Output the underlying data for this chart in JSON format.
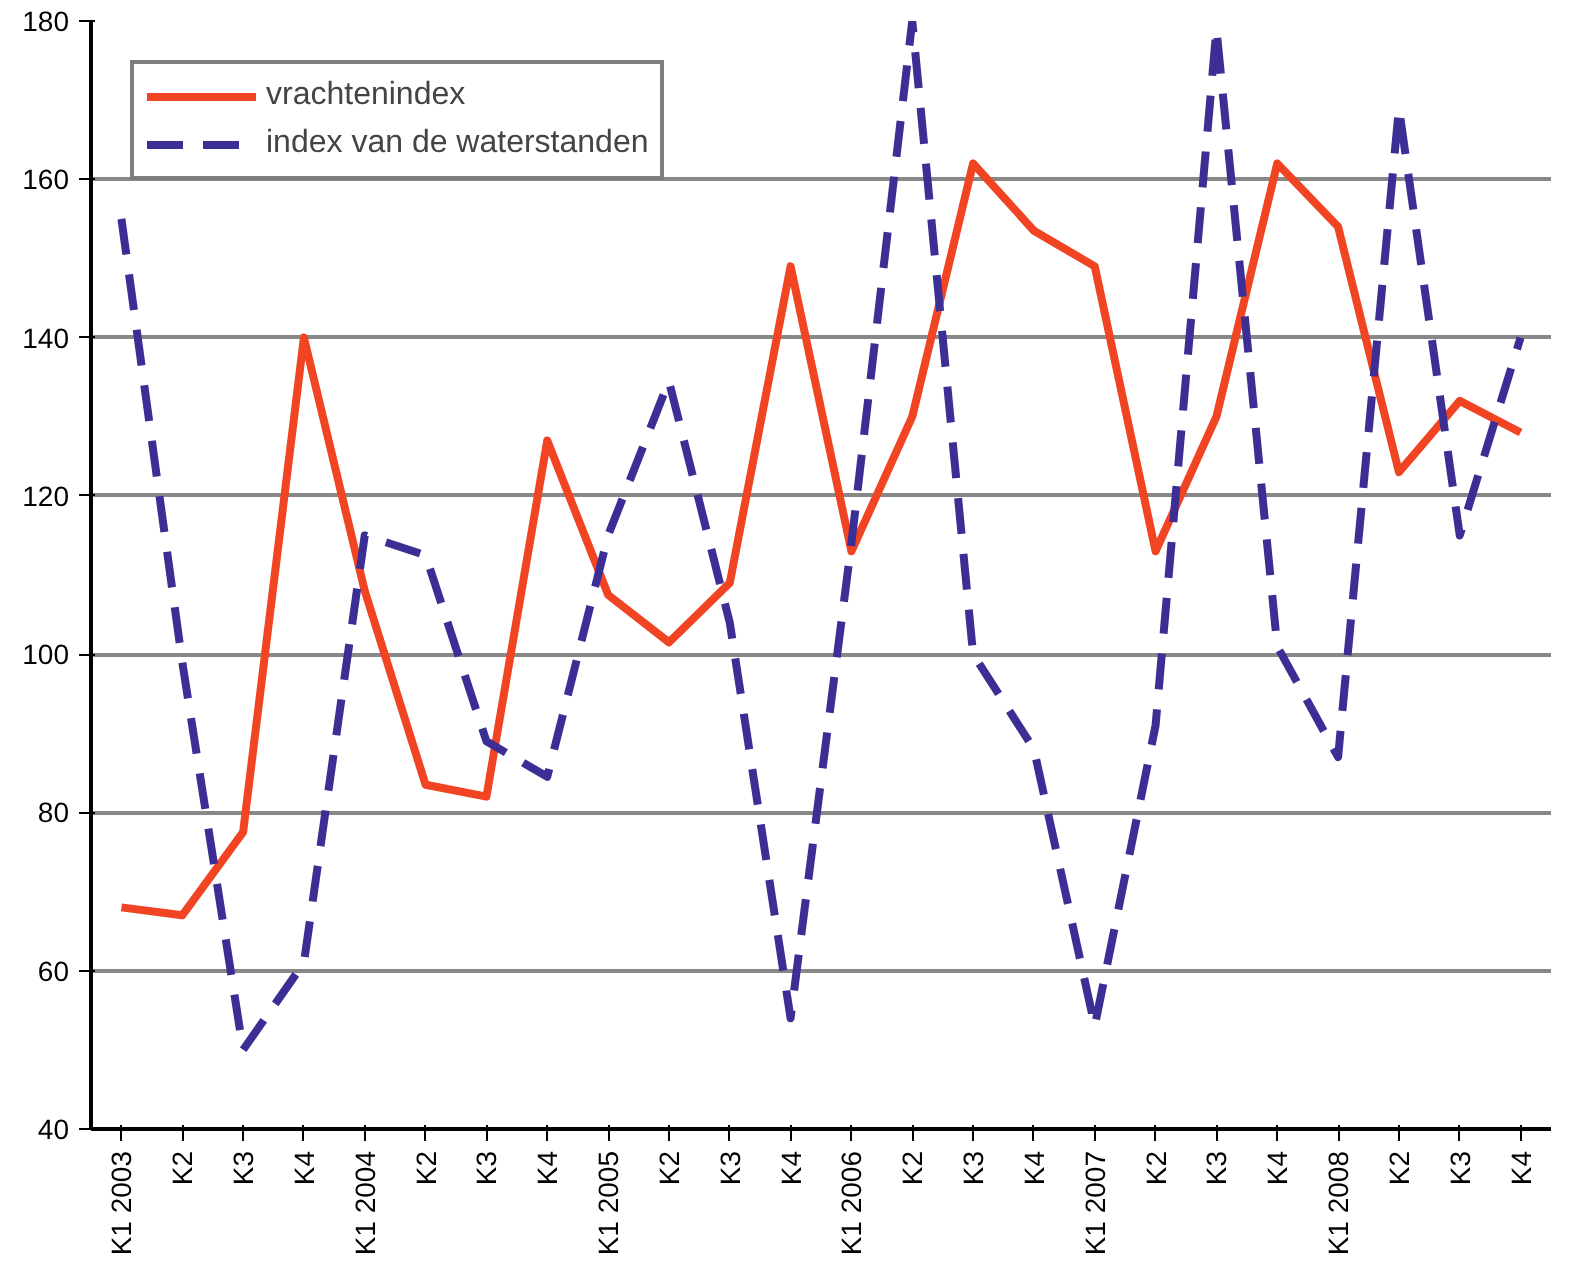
{
  "chart_data": {
    "type": "line",
    "categories": [
      "K1 2003",
      "K2",
      "K3",
      "K4",
      "K1 2004",
      "K2",
      "K3",
      "K4",
      "K1 2005",
      "K2",
      "K3",
      "K4",
      "K1 2006",
      "K2",
      "K3",
      "K4",
      "K1 2007",
      "K2",
      "K3",
      "K4",
      "K1 2008",
      "K2",
      "K3",
      "K4"
    ],
    "series": [
      {
        "name": "vrachtenindex",
        "color": "#f04423",
        "line_style": "solid",
        "values": [
          68,
          67,
          77.5,
          140,
          108,
          83.5,
          82,
          127,
          107.5,
          101.5,
          109,
          149,
          113,
          130,
          162,
          153.5,
          149,
          113,
          130,
          162,
          154,
          123,
          132,
          128
        ]
      },
      {
        "name": "index van de waterstanden",
        "color": "#3b2f96",
        "line_style": "dashed",
        "values": [
          155,
          99,
          50,
          61,
          115,
          112.5,
          89,
          84.5,
          115,
          134.5,
          104,
          54,
          114,
          180,
          100,
          88,
          53,
          91,
          179,
          101,
          87,
          169,
          115,
          140
        ]
      }
    ],
    "ylim": [
      40,
      180
    ],
    "yticks": [
      40,
      60,
      80,
      100,
      120,
      140,
      160,
      180
    ],
    "grid": "y",
    "legend": "top left",
    "marker": "none"
  }
}
